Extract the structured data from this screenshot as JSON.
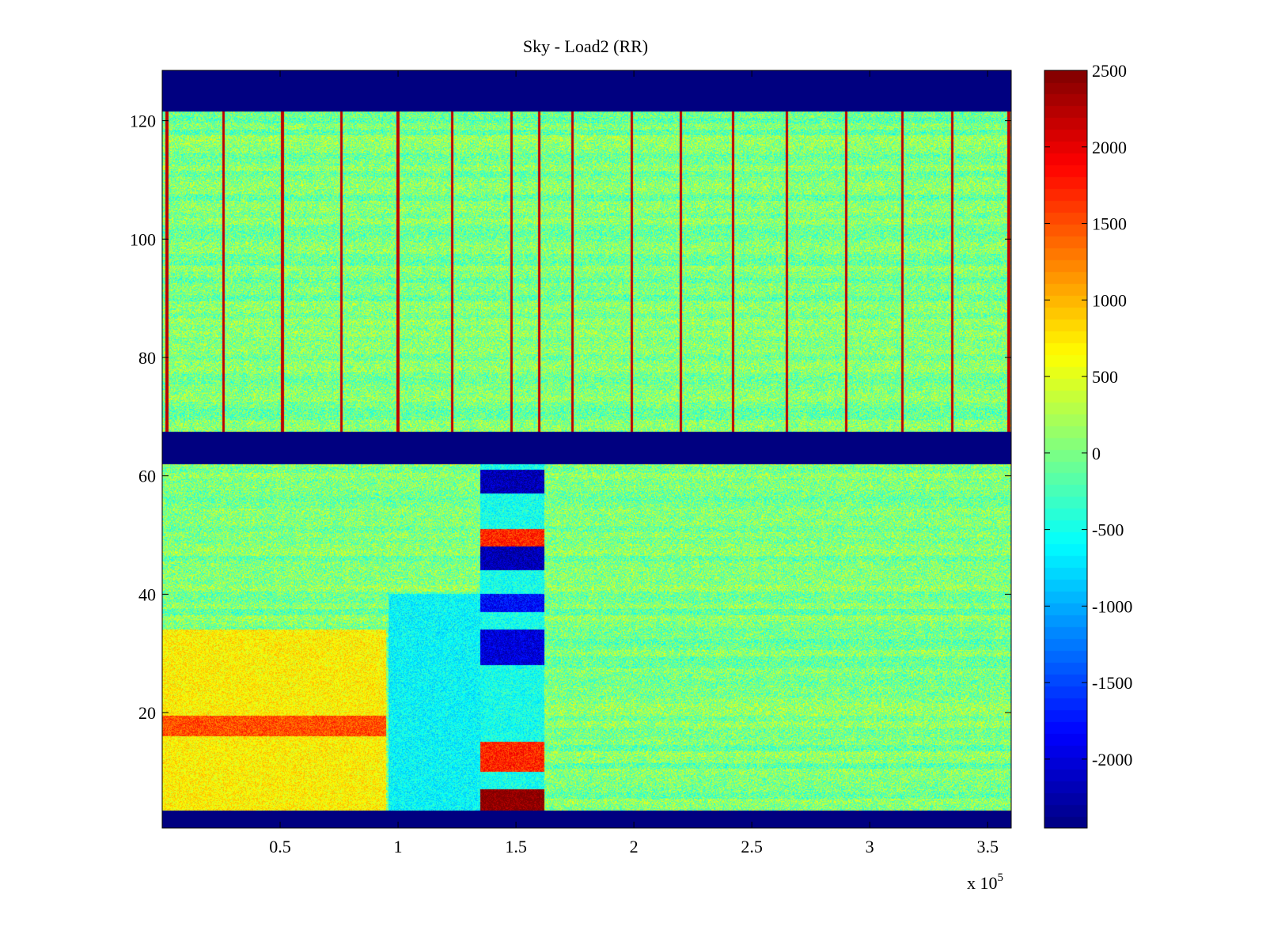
{
  "chart_data": {
    "type": "heatmap",
    "title": "Sky - Load2 (RR)",
    "xlabel": "",
    "ylabel": "",
    "x_exponent_label": "x 10",
    "x_exponent_power": "5",
    "xlim": [
      0,
      3.6
    ],
    "ylim": [
      0.5,
      128.5
    ],
    "x_ticks": [
      0.5,
      1,
      1.5,
      2,
      2.5,
      3,
      3.5
    ],
    "x_tick_labels": [
      "0.5",
      "1",
      "1.5",
      "2",
      "2.5",
      "3",
      "3.5"
    ],
    "y_ticks": [
      20,
      40,
      60,
      80,
      100,
      120
    ],
    "y_tick_labels": [
      "20",
      "40",
      "60",
      "80",
      "100",
      "120"
    ],
    "colormap": "jet",
    "clim": [
      -2450,
      2500
    ],
    "colorbar_ticks": [
      2500,
      2000,
      1500,
      1000,
      500,
      0,
      -500,
      -1000,
      -1500,
      -2000
    ],
    "colorbar_tick_labels": [
      "2500",
      "2000",
      "1500",
      "1000",
      "500",
      "0",
      "-500",
      "-1000",
      "-1500",
      "-2000"
    ],
    "masked_rows": [
      [
        0.5,
        3.5
      ],
      [
        62,
        67.5
      ],
      [
        121.5,
        128.5
      ]
    ],
    "masked_value": -2450,
    "background_level": 0,
    "periodic_spikes": {
      "channel_range": [
        67.5,
        121.5
      ],
      "x_positions": [
        0.02,
        0.26,
        0.51,
        0.76,
        1.0,
        1.23,
        1.48,
        1.6,
        1.74,
        1.99,
        2.2,
        2.42,
        2.65,
        2.9,
        3.14,
        3.35,
        3.59
      ],
      "value": 2200
    },
    "features": [
      {
        "x_range": [
          0,
          0.95
        ],
        "y_range": [
          3.5,
          34
        ],
        "value": 700
      },
      {
        "x_range": [
          0,
          0.95
        ],
        "y_range": [
          16,
          19.5
        ],
        "value": 1500
      },
      {
        "x_range": [
          0.96,
          1.35
        ],
        "y_range": [
          3.5,
          40
        ],
        "value": -600
      },
      {
        "x_range": [
          1.35,
          1.62
        ],
        "y_range": [
          3.5,
          62
        ],
        "value": -500
      },
      {
        "x_range": [
          1.35,
          1.62
        ],
        "y_range": [
          3.5,
          7
        ],
        "value": 2500
      },
      {
        "x_range": [
          1.35,
          1.62
        ],
        "y_range": [
          10,
          15
        ],
        "value": 1700
      },
      {
        "x_range": [
          1.35,
          1.62
        ],
        "y_range": [
          48,
          51
        ],
        "value": 1700
      },
      {
        "x_range": [
          1.35,
          1.62
        ],
        "y_range": [
          44,
          48
        ],
        "value": -2200
      },
      {
        "x_range": [
          1.35,
          1.62
        ],
        "y_range": [
          57,
          61
        ],
        "value": -2200
      },
      {
        "x_range": [
          1.35,
          1.62
        ],
        "y_range": [
          28,
          34
        ],
        "value": -2000
      },
      {
        "x_range": [
          1.35,
          1.62
        ],
        "y_range": [
          37,
          40
        ],
        "value": -1800
      }
    ]
  }
}
